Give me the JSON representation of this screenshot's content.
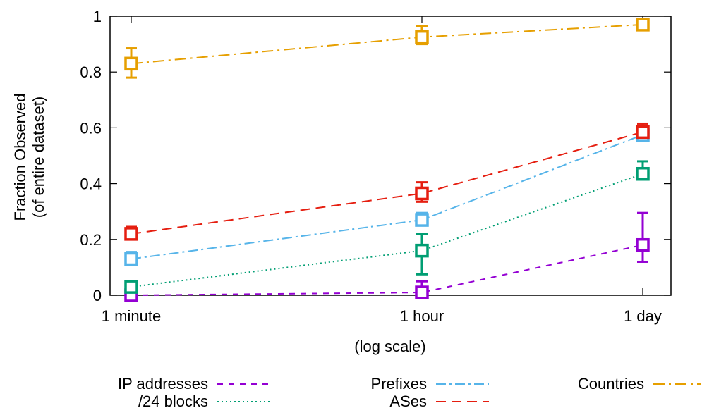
{
  "chart_data": {
    "type": "line",
    "xlabel": "(log scale)",
    "ylabel_lines": [
      "Fraction Observed",
      "(of entire dataset)"
    ],
    "categories": [
      "1 minute",
      "1 hour",
      "1 day"
    ],
    "ylim": [
      0,
      1
    ],
    "yticks": [
      "0",
      "0.2",
      "0.4",
      "0.6",
      "0.8",
      "1"
    ],
    "grid": false,
    "legend_position": "bottom",
    "series": [
      {
        "name": "IP addresses",
        "color": "#9400d3",
        "dash": "8,8",
        "marker": "square-open",
        "values": [
          0.0,
          0.01,
          0.18
        ],
        "err_low": [
          0.0,
          0.0,
          0.12
        ],
        "err_high": [
          0.0,
          0.05,
          0.295
        ]
      },
      {
        "name": "/24 blocks",
        "color": "#009e73",
        "dash": "2,4",
        "marker": "square-open",
        "values": [
          0.03,
          0.16,
          0.435
        ],
        "err_low": [
          0.01,
          0.075,
          0.425
        ],
        "err_high": [
          0.05,
          0.22,
          0.48
        ]
      },
      {
        "name": "Prefixes",
        "color": "#56b4e9",
        "dash": "14,5,3,5",
        "marker": "square-open",
        "values": [
          0.13,
          0.27,
          0.575
        ],
        "err_low": [
          0.11,
          0.25,
          0.555
        ],
        "err_high": [
          0.155,
          0.295,
          0.59
        ]
      },
      {
        "name": "ASes",
        "color": "#e51e10",
        "dash": "14,8",
        "marker": "square-open",
        "values": [
          0.22,
          0.365,
          0.585
        ],
        "err_low": [
          0.205,
          0.335,
          0.565
        ],
        "err_high": [
          0.245,
          0.405,
          0.615
        ]
      },
      {
        "name": "Countries",
        "color": "#e69f00",
        "dash": "16,6,3,6",
        "marker": "square-open",
        "values": [
          0.83,
          0.925,
          0.97
        ],
        "err_low": [
          0.78,
          0.9,
          0.965
        ],
        "err_high": [
          0.885,
          0.965,
          0.98
        ]
      }
    ]
  }
}
